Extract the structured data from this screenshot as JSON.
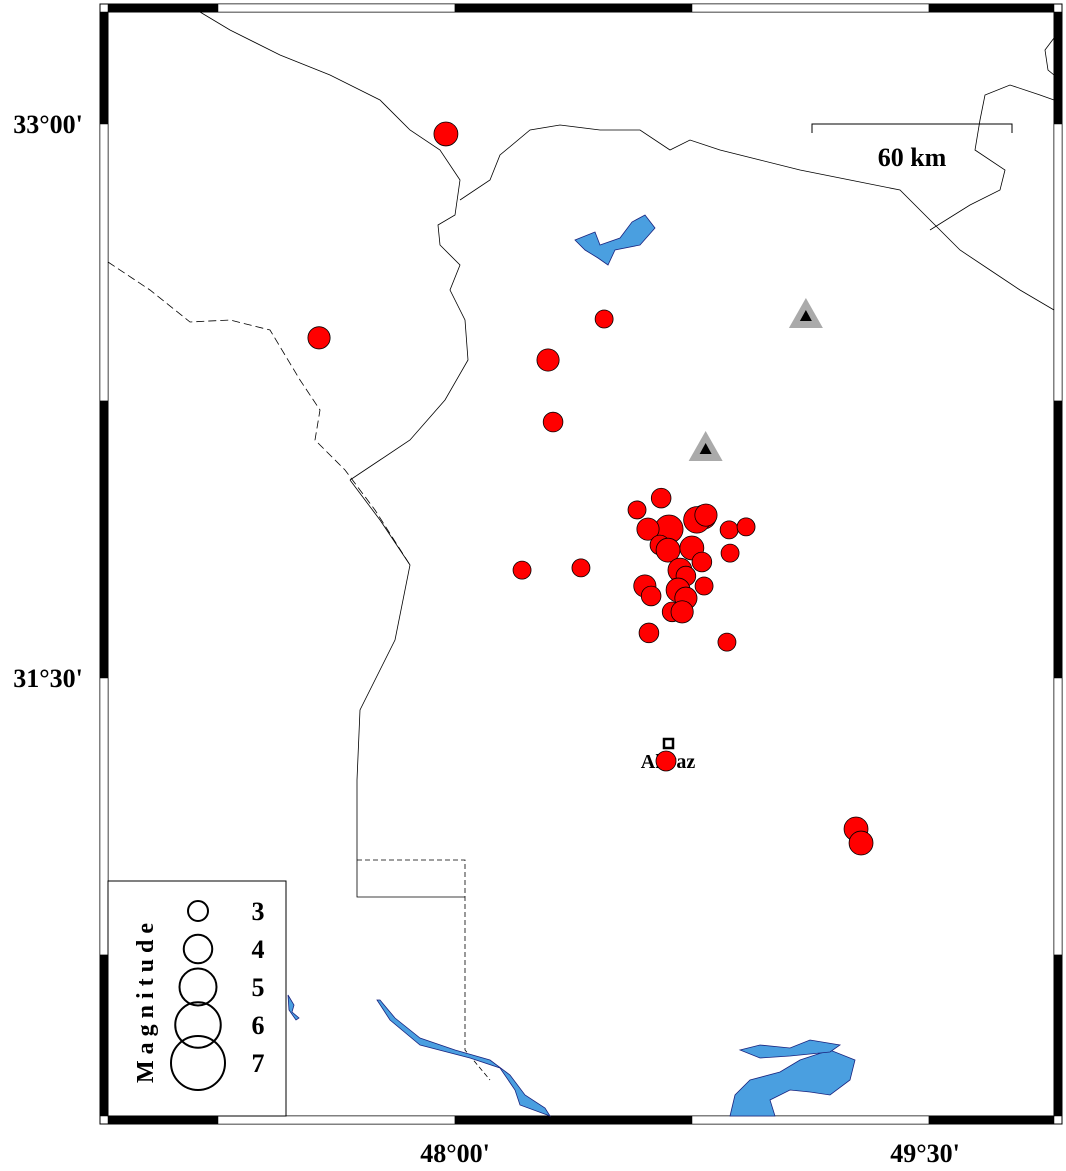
{
  "map": {
    "lat_labels": [
      "33°00'",
      "31°30'"
    ],
    "lon_labels": [
      "48°00'",
      "49°30'"
    ],
    "lat_ticks": [
      33.0,
      31.5
    ],
    "lon_ticks": [
      48.0,
      49.5
    ],
    "scale_bar": {
      "label": "60 km",
      "length_km": 60
    },
    "city": {
      "name": "Ahvaz",
      "lon": 48.68,
      "lat": 31.32
    },
    "colors": {
      "event": "#ff0000",
      "water": "#4a9fe0",
      "station": "#aaaaaa",
      "station_core": "#000000"
    }
  },
  "legend": {
    "title": "Magnitude",
    "magnitudes": [
      "3",
      "4",
      "5",
      "6",
      "7"
    ]
  },
  "stations": [
    {
      "lon": 49.12,
      "lat": 32.48
    },
    {
      "lon": 48.8,
      "lat": 32.12
    }
  ],
  "events": [
    {
      "lon": 47.971,
      "lat": 32.973,
      "mag": 3.7
    },
    {
      "lon": 47.566,
      "lat": 32.421,
      "mag": 3.5
    },
    {
      "lon": 48.476,
      "lat": 32.472,
      "mag": 3.0
    },
    {
      "lon": 48.297,
      "lat": 32.361,
      "mag": 3.5
    },
    {
      "lon": 48.313,
      "lat": 32.193,
      "mag": 3.2
    },
    {
      "lon": 48.658,
      "lat": 31.987,
      "mag": 3.2
    },
    {
      "lon": 48.581,
      "lat": 31.955,
      "mag": 3.0
    },
    {
      "lon": 48.683,
      "lat": 31.903,
      "mag": 4.2
    },
    {
      "lon": 48.616,
      "lat": 31.903,
      "mag": 3.5
    },
    {
      "lon": 48.795,
      "lat": 31.936,
      "mag": 3.7
    },
    {
      "lon": 48.772,
      "lat": 31.928,
      "mag": 4.0
    },
    {
      "lon": 48.801,
      "lat": 31.941,
      "mag": 3.5
    },
    {
      "lon": 48.875,
      "lat": 31.901,
      "mag": 3.0
    },
    {
      "lon": 48.929,
      "lat": 31.909,
      "mag": 3.0
    },
    {
      "lon": 48.654,
      "lat": 31.86,
      "mag": 3.2
    },
    {
      "lon": 48.68,
      "lat": 31.846,
      "mag": 3.7
    },
    {
      "lon": 48.756,
      "lat": 31.852,
      "mag": 3.7
    },
    {
      "lon": 48.788,
      "lat": 31.814,
      "mag": 3.2
    },
    {
      "lon": 48.878,
      "lat": 31.838,
      "mag": 3.0
    },
    {
      "lon": 48.214,
      "lat": 31.792,
      "mag": 3.0
    },
    {
      "lon": 48.402,
      "lat": 31.798,
      "mag": 3.0
    },
    {
      "lon": 48.718,
      "lat": 31.792,
      "mag": 3.7
    },
    {
      "lon": 48.737,
      "lat": 31.776,
      "mag": 3.2
    },
    {
      "lon": 48.712,
      "lat": 31.738,
      "mag": 3.7
    },
    {
      "lon": 48.606,
      "lat": 31.749,
      "mag": 3.5
    },
    {
      "lon": 48.626,
      "lat": 31.722,
      "mag": 3.2
    },
    {
      "lon": 48.795,
      "lat": 31.749,
      "mag": 3.0
    },
    {
      "lon": 48.737,
      "lat": 31.716,
      "mag": 3.5
    },
    {
      "lon": 48.693,
      "lat": 31.679,
      "mag": 3.2
    },
    {
      "lon": 48.725,
      "lat": 31.679,
      "mag": 3.5
    },
    {
      "lon": 48.619,
      "lat": 31.622,
      "mag": 3.2
    },
    {
      "lon": 48.868,
      "lat": 31.597,
      "mag": 3.0
    },
    {
      "lon": 48.673,
      "lat": 31.275,
      "mag": 3.2
    },
    {
      "lon": 49.28,
      "lat": 31.091,
      "mag": 3.7
    },
    {
      "lon": 49.296,
      "lat": 31.053,
      "mag": 3.7
    }
  ]
}
